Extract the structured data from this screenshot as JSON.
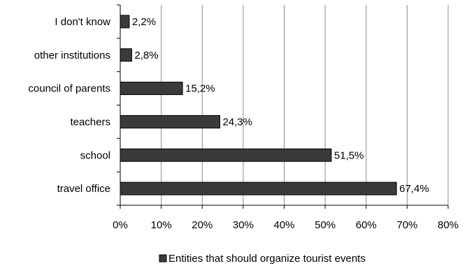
{
  "chart_data": {
    "type": "bar",
    "orientation": "horizontal",
    "title": "",
    "xlabel": "",
    "ylabel": "",
    "categories": [
      "I don't know",
      "other institutions",
      "council of parents",
      "teachers",
      "school",
      "travel office"
    ],
    "series": [
      {
        "name": "Entities that should organize tourist events",
        "values": [
          2.2,
          2.8,
          15.2,
          24.3,
          51.5,
          67.4
        ],
        "value_labels": [
          "2,2%",
          "2,8%",
          "15,2%",
          "24,3%",
          "51,5%",
          "67,4%"
        ]
      }
    ],
    "xlim": [
      0,
      80
    ],
    "xticks": [
      0,
      10,
      20,
      30,
      40,
      50,
      60,
      70,
      80
    ],
    "xtick_labels": [
      "0%",
      "10%",
      "20%",
      "30%",
      "40%",
      "50%",
      "60%",
      "70%",
      "80%"
    ],
    "grid": "vertical",
    "legend": {
      "placement": "bottom",
      "entries": [
        "Entities that should organize tourist events"
      ]
    },
    "colors": {
      "bar_fill": "#3a3a3a",
      "bar_stroke": "#000000",
      "grid": "#8c8c8c",
      "axis": "#000000"
    }
  }
}
